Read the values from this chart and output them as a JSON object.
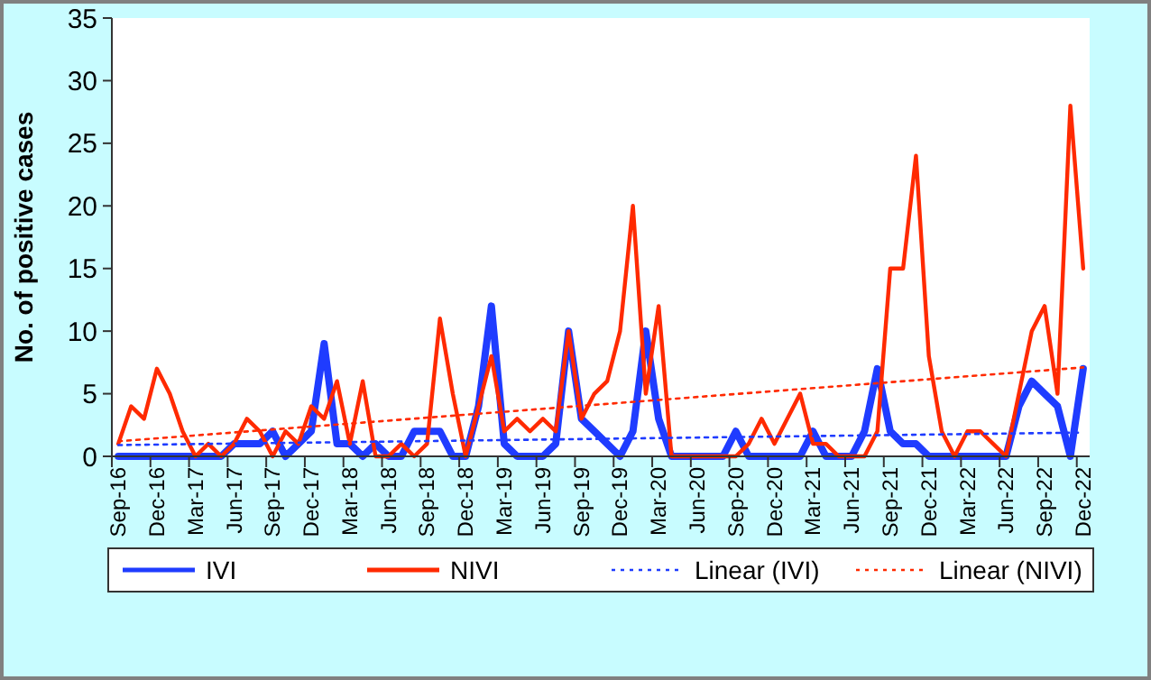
{
  "chart_data": {
    "type": "line",
    "ylabel": "No. of positive cases",
    "categories": [
      "Sep-16",
      null,
      null,
      "Dec-16",
      null,
      null,
      "Mar-17",
      null,
      null,
      "Jun-17",
      null,
      null,
      "Sep-17",
      null,
      null,
      "Dec-17",
      null,
      null,
      "Mar-18",
      null,
      null,
      "Jun-18",
      null,
      null,
      "Sep-18",
      null,
      null,
      "Dec-18",
      null,
      null,
      "Mar-19",
      null,
      null,
      "Jun-19",
      null,
      null,
      "Sep-19",
      null,
      null,
      "Dec-19",
      null,
      null,
      "Mar-20",
      null,
      null,
      "Jun-20",
      null,
      null,
      "Sep-20",
      null,
      null,
      "Dec-20",
      null,
      null,
      "Mar-21",
      null,
      null,
      "Jun-21",
      null,
      null,
      "Sep-21",
      null,
      null,
      "Dec-21",
      null,
      null,
      "Mar-22",
      null,
      null,
      "Jun-22",
      null,
      null,
      "Sep-22",
      null,
      null,
      "Dec-22"
    ],
    "series": [
      {
        "name": "IVI",
        "color": "#1f3cff",
        "line_style": "solid",
        "values": [
          0,
          0,
          0,
          0,
          0,
          0,
          0,
          0,
          0,
          1,
          1,
          1,
          2,
          0,
          1,
          2,
          9,
          1,
          1,
          0,
          1,
          0,
          0,
          2,
          2,
          2,
          0,
          0,
          4,
          12,
          1,
          0,
          0,
          0,
          1,
          10,
          3,
          2,
          1,
          0,
          2,
          10,
          3,
          0,
          0,
          0,
          0,
          0,
          2,
          0,
          0,
          0,
          0,
          0,
          2,
          0,
          0,
          0,
          2,
          7,
          2,
          1,
          1,
          0,
          0,
          0,
          0,
          0,
          0,
          0,
          4,
          6,
          5,
          4,
          0,
          7
        ]
      },
      {
        "name": "NIVI",
        "color": "#ff2a00",
        "line_style": "solid",
        "values": [
          1,
          4,
          3,
          7,
          5,
          2,
          0,
          1,
          0,
          1,
          3,
          2,
          0,
          2,
          1,
          4,
          3,
          6,
          1,
          6,
          0,
          0,
          1,
          0,
          1,
          11,
          5,
          0,
          4,
          8,
          2,
          3,
          2,
          3,
          2,
          10,
          3,
          5,
          6,
          10,
          20,
          5,
          12,
          0,
          0,
          0,
          0,
          0,
          0,
          1,
          3,
          1,
          3,
          5,
          1,
          1,
          0,
          0,
          0,
          2,
          15,
          15,
          24,
          8,
          2,
          0,
          2,
          2,
          1,
          0,
          5,
          10,
          12,
          5,
          28,
          15
        ]
      },
      {
        "name": "Linear (IVI)",
        "type": "line",
        "color": "#1f3cff",
        "line_style": "dotted",
        "x": [
          "Sep-16",
          "Dec-22"
        ],
        "values": [
          0.9,
          1.9
        ]
      },
      {
        "name": "Linear (NIVI)",
        "type": "line",
        "color": "#ff2a00",
        "line_style": "dotted",
        "x": [
          "Sep-16",
          "Dec-22"
        ],
        "values": [
          1.2,
          7.1
        ]
      }
    ],
    "ylim": [
      0,
      35
    ],
    "yticks": [
      0,
      5,
      10,
      15,
      20,
      25,
      30,
      35
    ],
    "grid": false,
    "legend": "bottom",
    "marker": "none"
  }
}
